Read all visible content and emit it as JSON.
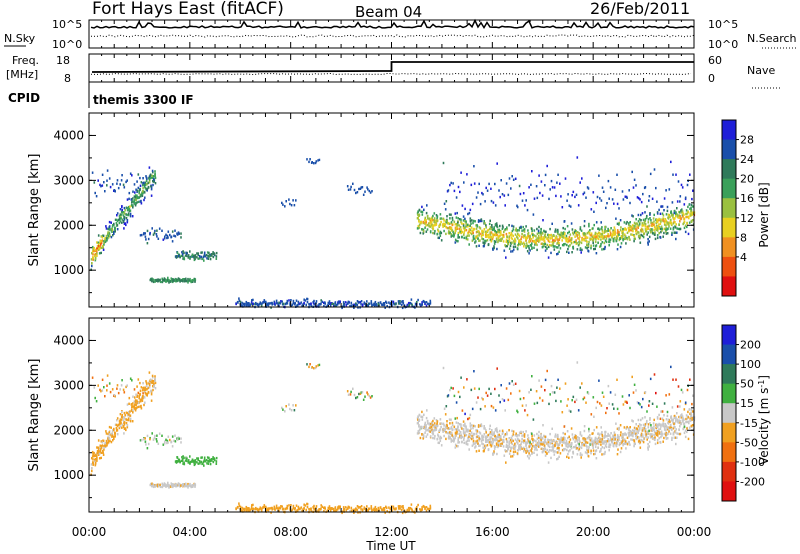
{
  "header": {
    "station": "Fort Hays East (fitACF)",
    "beam": "Beam 04",
    "date": "26/Feb/2011"
  },
  "noise_panel": {
    "left_label": "N.Sky",
    "right_label": "N.Search",
    "left_ticks": [
      "10^5",
      "10^0"
    ],
    "right_ticks": [
      "10^5",
      "10^0"
    ]
  },
  "freq_panel": {
    "left_label_line1": "Freq.",
    "left_label_line2": "[MHz]",
    "right_label": "Nave",
    "left_ticks": [
      "18",
      "8"
    ],
    "right_ticks": [
      "60",
      "0"
    ],
    "cpid_label": "CPID",
    "cpid_value": "themis 3300 IF"
  },
  "colors": {
    "power": [
      "#1f1fd8",
      "#1a4faa",
      "#2f7a5a",
      "#3aa05a",
      "#9ac040",
      "#e8d020",
      "#f09020",
      "#ee5010",
      "#e01010"
    ],
    "velocity": [
      "#1f1fd8",
      "#1a4faa",
      "#2f7a5a",
      "#40b040",
      "#c8c8c8",
      "#f0a020",
      "#f07010",
      "#e03010",
      "#e01010"
    ]
  },
  "chart_data": [
    {
      "type": "heatmap",
      "name": "power",
      "title": "",
      "xlabel": "",
      "ylabel": "Slant Range [km]",
      "xlim": [
        "00:00",
        "00:00"
      ],
      "x_ticks": [
        "00:00",
        "04:00",
        "08:00",
        "12:00",
        "16:00",
        "20:00",
        "00:00"
      ],
      "ylim": [
        180,
        4500
      ],
      "y_ticks": [
        1000,
        2000,
        3000,
        4000
      ],
      "colorbar_label": "Power [dB]",
      "colorbar_ticks": [
        "4",
        "8",
        "12",
        "16",
        "20",
        "24",
        "28"
      ],
      "colorbar_range": [
        0,
        30
      ]
    },
    {
      "type": "heatmap",
      "name": "velocity",
      "title": "",
      "xlabel": "Time UT",
      "ylabel": "Slant Range [km]",
      "xlim": [
        "00:00",
        "00:00"
      ],
      "x_ticks": [
        "00:00",
        "04:00",
        "08:00",
        "12:00",
        "16:00",
        "20:00",
        "00:00"
      ],
      "ylim": [
        180,
        4500
      ],
      "y_ticks": [
        1000,
        2000,
        3000,
        4000
      ],
      "colorbar_label": "Velocity [m s^-1]",
      "colorbar_ticks": [
        "200",
        "100",
        "50",
        "15",
        "-15",
        "-50",
        "-100",
        "-200"
      ],
      "colorbar_range": [
        -250,
        250
      ]
    }
  ]
}
